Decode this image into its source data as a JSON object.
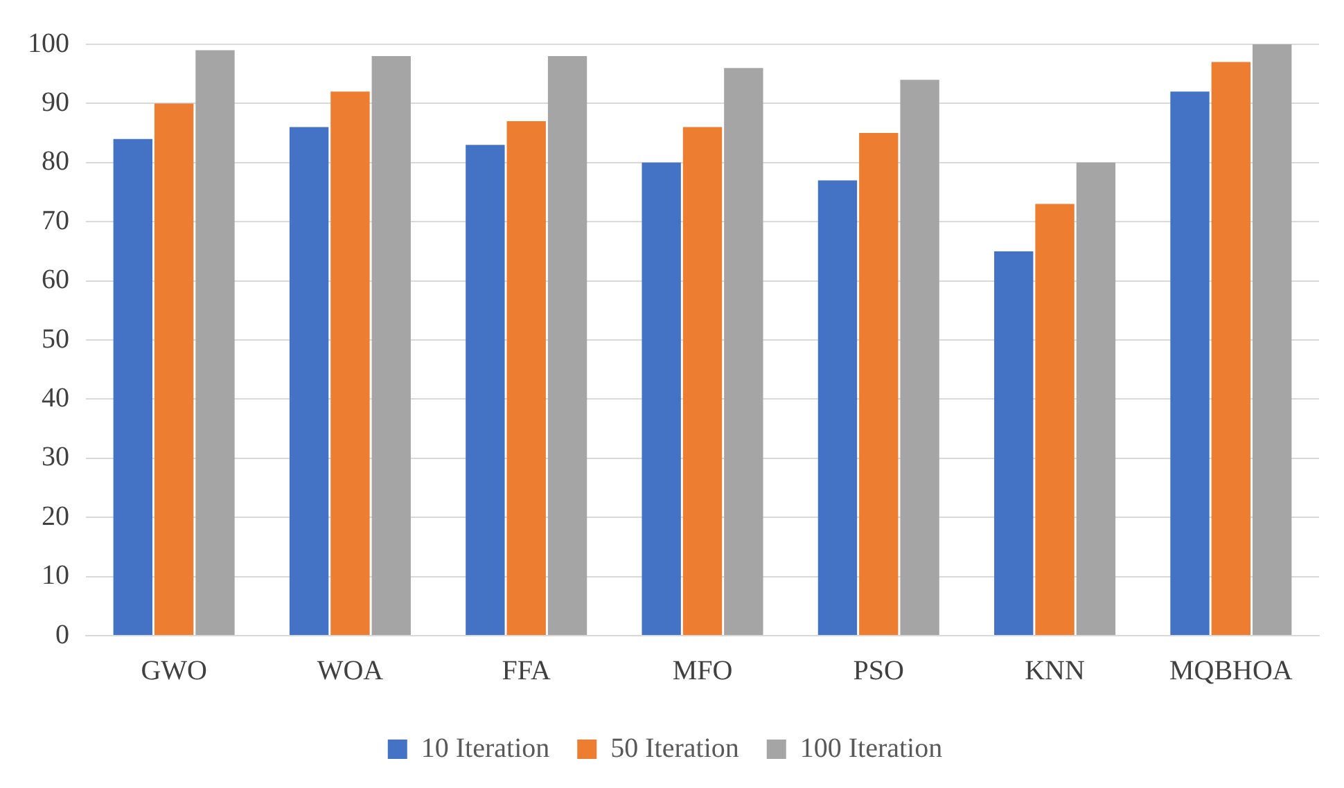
{
  "chart_data": {
    "type": "bar",
    "categories": [
      "GWO",
      "WOA",
      "FFA",
      "MFO",
      "PSO",
      "KNN",
      "MQBHOA"
    ],
    "series": [
      {
        "name": "10 Iteration",
        "color": "#4472c4",
        "values": [
          84,
          86,
          83,
          80,
          77,
          65,
          92
        ]
      },
      {
        "name": "50 Iteration",
        "color": "#ed7d31",
        "values": [
          90,
          92,
          87,
          86,
          85,
          73,
          97
        ]
      },
      {
        "name": "100 Iteration",
        "color": "#a5a5a5",
        "values": [
          99,
          98,
          98,
          96,
          94,
          80,
          100
        ]
      }
    ],
    "ylim": [
      0,
      100
    ],
    "yticks": [
      0,
      10,
      20,
      30,
      40,
      50,
      60,
      70,
      80,
      90,
      100
    ],
    "grid": "y",
    "legend": "bottom"
  }
}
